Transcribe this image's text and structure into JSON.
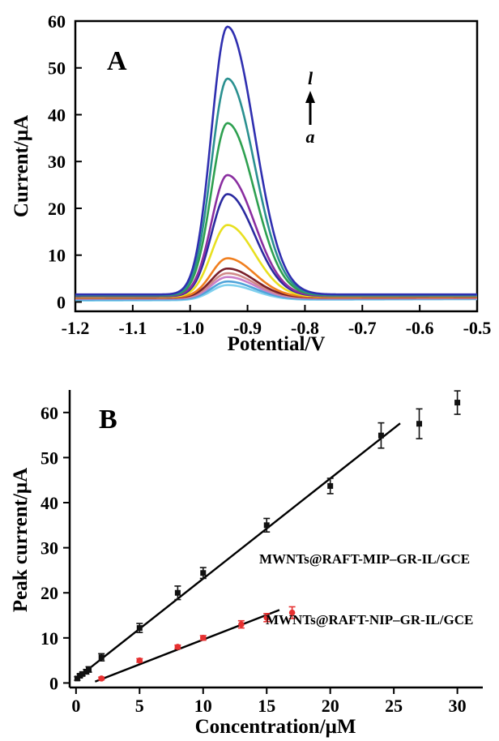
{
  "chart_data": [
    {
      "type": "line",
      "panel_label": "A",
      "xlabel": "Potential/V",
      "ylabel": "Current/μA",
      "xlim": [
        -1.2,
        -0.5
      ],
      "ylim": [
        -2,
        60
      ],
      "xticks": [
        -1.2,
        -1.1,
        -1.0,
        -0.9,
        -0.8,
        -0.7,
        -0.6,
        -0.5
      ],
      "xtick_labels": [
        "-1.2",
        "-1.1",
        "-1.0",
        "-0.9",
        "-0.8",
        "-0.7",
        "-0.6",
        "-0.5"
      ],
      "yticks": [
        0,
        10,
        20,
        30,
        40,
        50,
        60
      ],
      "ytick_labels": [
        "0",
        "10",
        "20",
        "30",
        "40",
        "50",
        "60"
      ],
      "arrow_annotation": {
        "top": "l",
        "bottom": "a"
      },
      "peak_potential": -0.935,
      "series": [
        {
          "peak": 3.2,
          "baseline_start": 0.3,
          "baseline_end": 0.6,
          "color": "#7fd0ee"
        },
        {
          "peak": 3.8,
          "baseline_start": 0.5,
          "baseline_end": 0.7,
          "color": "#4fa3d9"
        },
        {
          "peak": 4.6,
          "baseline_start": 0.7,
          "baseline_end": 0.8,
          "color": "#c97fc9"
        },
        {
          "peak": 5.3,
          "baseline_start": 0.8,
          "baseline_end": 0.9,
          "color": "#d08a8a"
        },
        {
          "peak": 6.2,
          "baseline_start": 0.9,
          "baseline_end": 1.0,
          "color": "#7a1f2a"
        },
        {
          "peak": 8.3,
          "baseline_start": 1.0,
          "baseline_end": 1.1,
          "color": "#f07f1f"
        },
        {
          "peak": 15.3,
          "baseline_start": 1.1,
          "baseline_end": 1.2,
          "color": "#e8e020"
        },
        {
          "peak": 21.8,
          "baseline_start": 1.2,
          "baseline_end": 1.3,
          "color": "#2a2aa0"
        },
        {
          "peak": 25.8,
          "baseline_start": 1.3,
          "baseline_end": 1.3,
          "color": "#8a2ea0"
        },
        {
          "peak": 36.8,
          "baseline_start": 1.4,
          "baseline_end": 1.4,
          "color": "#2ea050"
        },
        {
          "peak": 46.2,
          "baseline_start": 1.5,
          "baseline_end": 1.5,
          "color": "#2a9090"
        },
        {
          "peak": 57.2,
          "baseline_start": 1.6,
          "baseline_end": 1.6,
          "color": "#2f2fb0"
        }
      ]
    },
    {
      "type": "scatter",
      "panel_label": "B",
      "xlabel": "Concentration/μM",
      "ylabel": "Peak current/μA",
      "xlim": [
        -0.5,
        32
      ],
      "ylim": [
        -1,
        65
      ],
      "xticks": [
        0,
        5,
        10,
        15,
        20,
        25,
        30
      ],
      "xtick_labels": [
        "0",
        "5",
        "10",
        "15",
        "20",
        "25",
        "30"
      ],
      "yticks": [
        0,
        10,
        20,
        30,
        40,
        50,
        60
      ],
      "ytick_labels": [
        "0",
        "10",
        "20",
        "30",
        "40",
        "50",
        "60"
      ],
      "series": [
        {
          "name": "MWNTs@RAFT-MIP–GR-IL/GCE",
          "color": "#111111",
          "marker": "square",
          "x": [
            0.1,
            0.3,
            0.5,
            0.8,
            1.0,
            2.0,
            5.0,
            8.0,
            10.0,
            15.0,
            20.0,
            24.0,
            27.0,
            30.0
          ],
          "y": [
            1.0,
            1.6,
            2.0,
            2.5,
            3.0,
            5.7,
            12.2,
            20.0,
            24.4,
            35.0,
            43.7,
            54.9,
            57.5,
            62.2
          ],
          "err": [
            0.4,
            0.4,
            0.4,
            0.5,
            0.6,
            0.8,
            1.0,
            1.5,
            1.2,
            1.5,
            1.7,
            2.8,
            3.3,
            2.6
          ],
          "fit": {
            "x": [
              0,
              25.5
            ],
            "y": [
              0.9,
              57.6
            ]
          }
        },
        {
          "name": "MWNTs@RAFT-NIP–GR-IL/GCE",
          "color": "#e63030",
          "marker": "circle",
          "x": [
            2.0,
            5.0,
            8.0,
            10.0,
            13.0,
            15.0,
            17.0
          ],
          "y": [
            1.0,
            5.0,
            8.0,
            10.0,
            13.0,
            14.5,
            15.6
          ],
          "err": [
            0.3,
            0.4,
            0.4,
            0.5,
            0.8,
            0.9,
            1.3
          ],
          "fit": {
            "x": [
              1.5,
              16.0
            ],
            "y": [
              0.3,
              16.2
            ]
          }
        }
      ]
    }
  ]
}
